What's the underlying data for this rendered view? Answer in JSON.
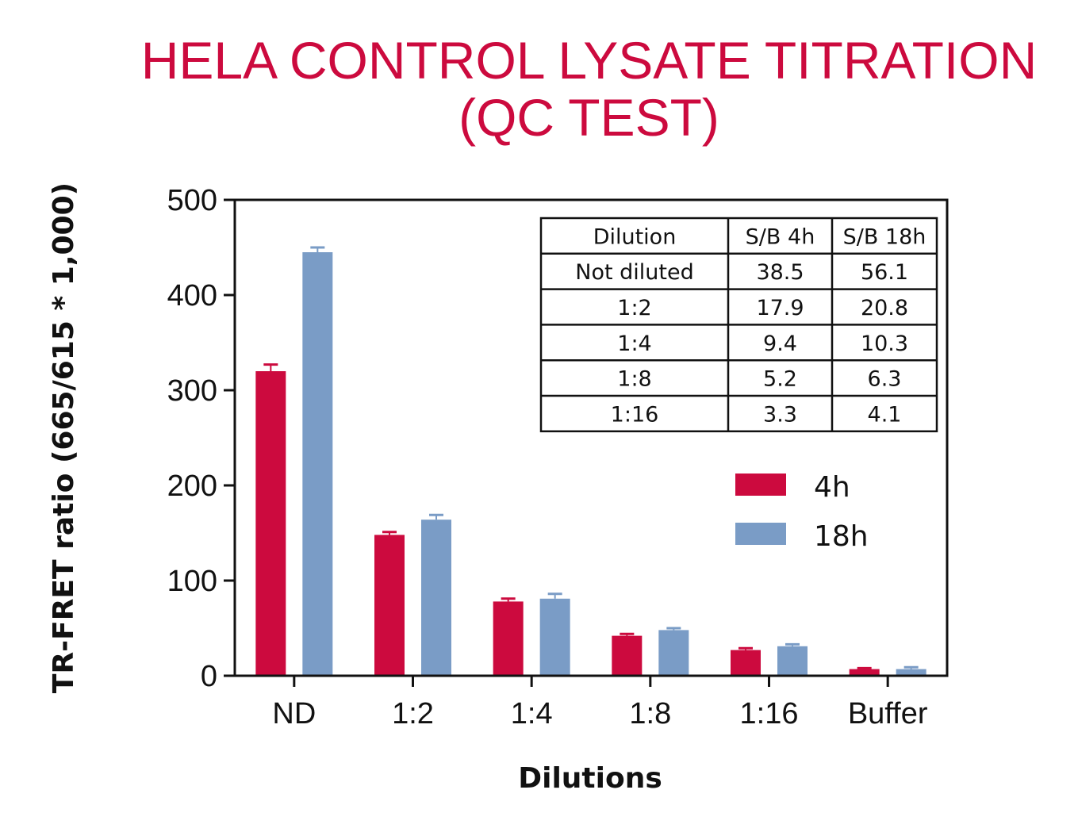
{
  "title_line1": "HELA CONTROL LYSATE TITRATION",
  "title_line2": "(QC TEST)",
  "colors": {
    "title": "#cc0a3e",
    "series_4h": "#cc0a3e",
    "series_18h": "#7a9cc6"
  },
  "chart_data": {
    "type": "bar",
    "categories": [
      "ND",
      "1:2",
      "1:4",
      "1:8",
      "1:16",
      "Buffer"
    ],
    "xlabel": "Dilutions",
    "ylabel": "TR-FRET ratio (665/615 * 1,000)",
    "ylim": [
      0,
      500
    ],
    "yticks": [
      0,
      100,
      200,
      300,
      400,
      500
    ],
    "legend_position": "right",
    "series": [
      {
        "name": "4h",
        "values": [
          320,
          148,
          78,
          42,
          27,
          7
        ],
        "error": [
          7,
          3,
          3,
          2,
          2,
          1
        ]
      },
      {
        "name": "18h",
        "values": [
          445,
          164,
          81,
          48,
          31,
          7
        ],
        "error": [
          5,
          5,
          5,
          2,
          2,
          2
        ]
      }
    ],
    "table": {
      "headers": [
        "Dilution",
        "S/B 4h",
        "S/B 18h"
      ],
      "rows": [
        [
          "Not diluted",
          "38.5",
          "56.1"
        ],
        [
          "1:2",
          "17.9",
          "20.8"
        ],
        [
          "1:4",
          "9.4",
          "10.3"
        ],
        [
          "1:8",
          "5.2",
          "6.3"
        ],
        [
          "1:16",
          "3.3",
          "4.1"
        ]
      ]
    }
  }
}
